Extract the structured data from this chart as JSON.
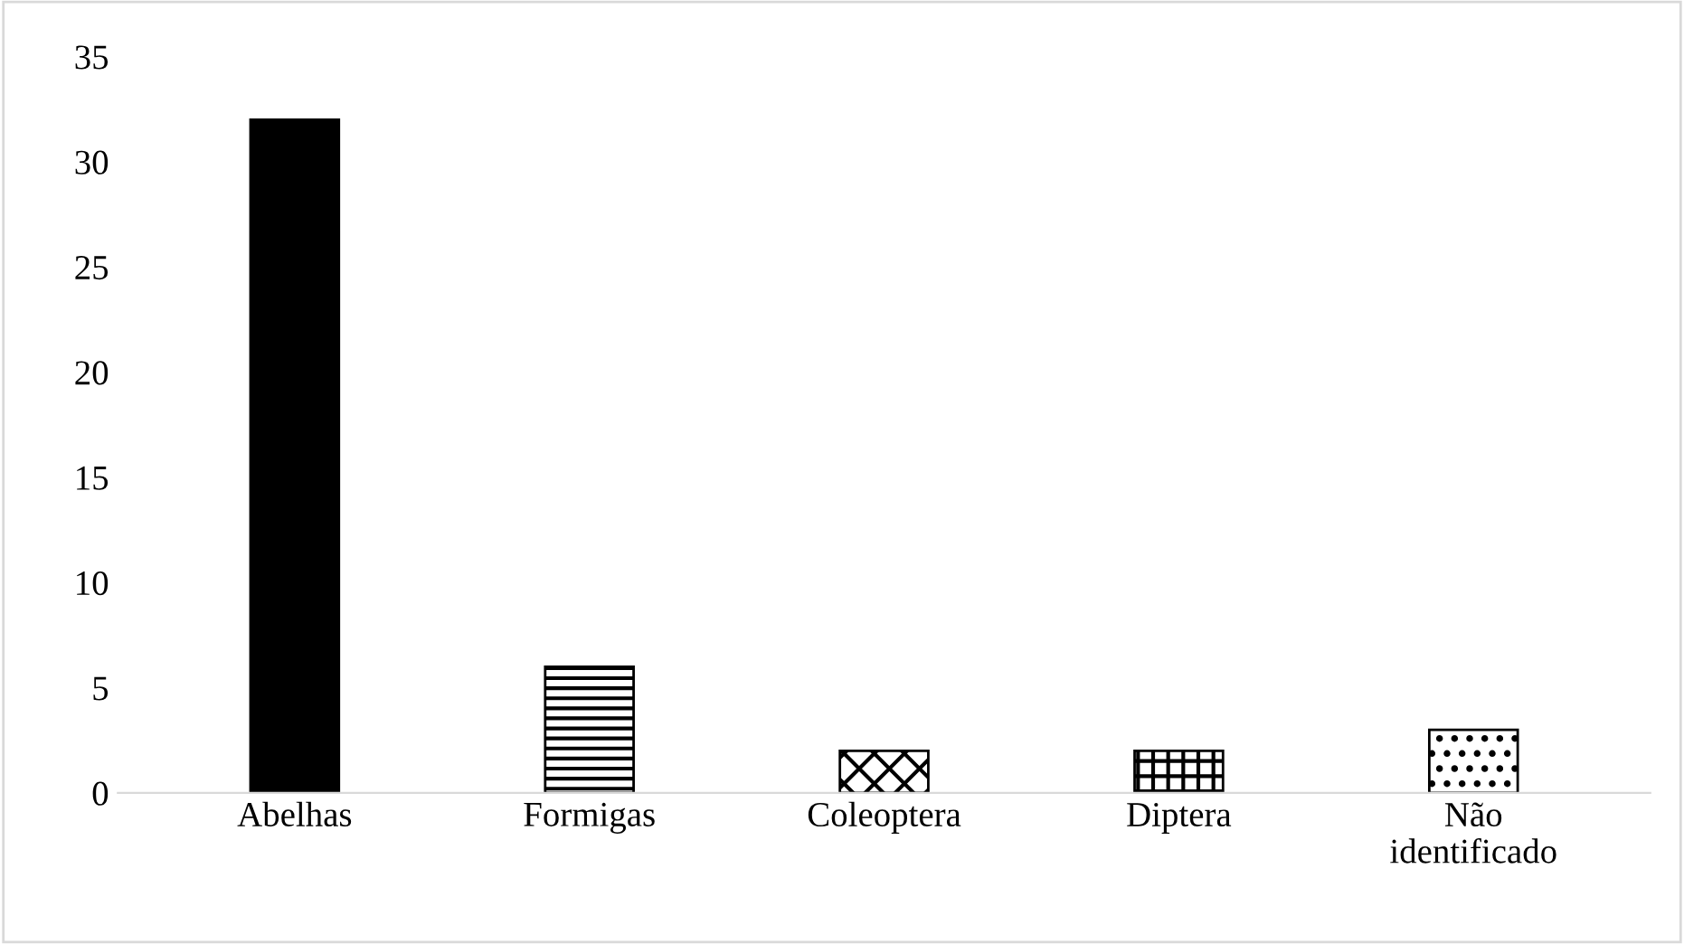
{
  "chart_data": {
    "type": "bar",
    "categories": [
      "Abelhas",
      "Formigas",
      "Coleoptera",
      "Diptera",
      "Não\nidentificado"
    ],
    "values": [
      32,
      6,
      2,
      2,
      3
    ],
    "colors": [
      "#000000",
      "#000000",
      "#000000",
      "#000000",
      "#000000"
    ],
    "ylim": [
      0,
      35
    ],
    "yticks": [
      0,
      5,
      10,
      15,
      20,
      25,
      30,
      35
    ],
    "grid": false,
    "legend": false
  }
}
